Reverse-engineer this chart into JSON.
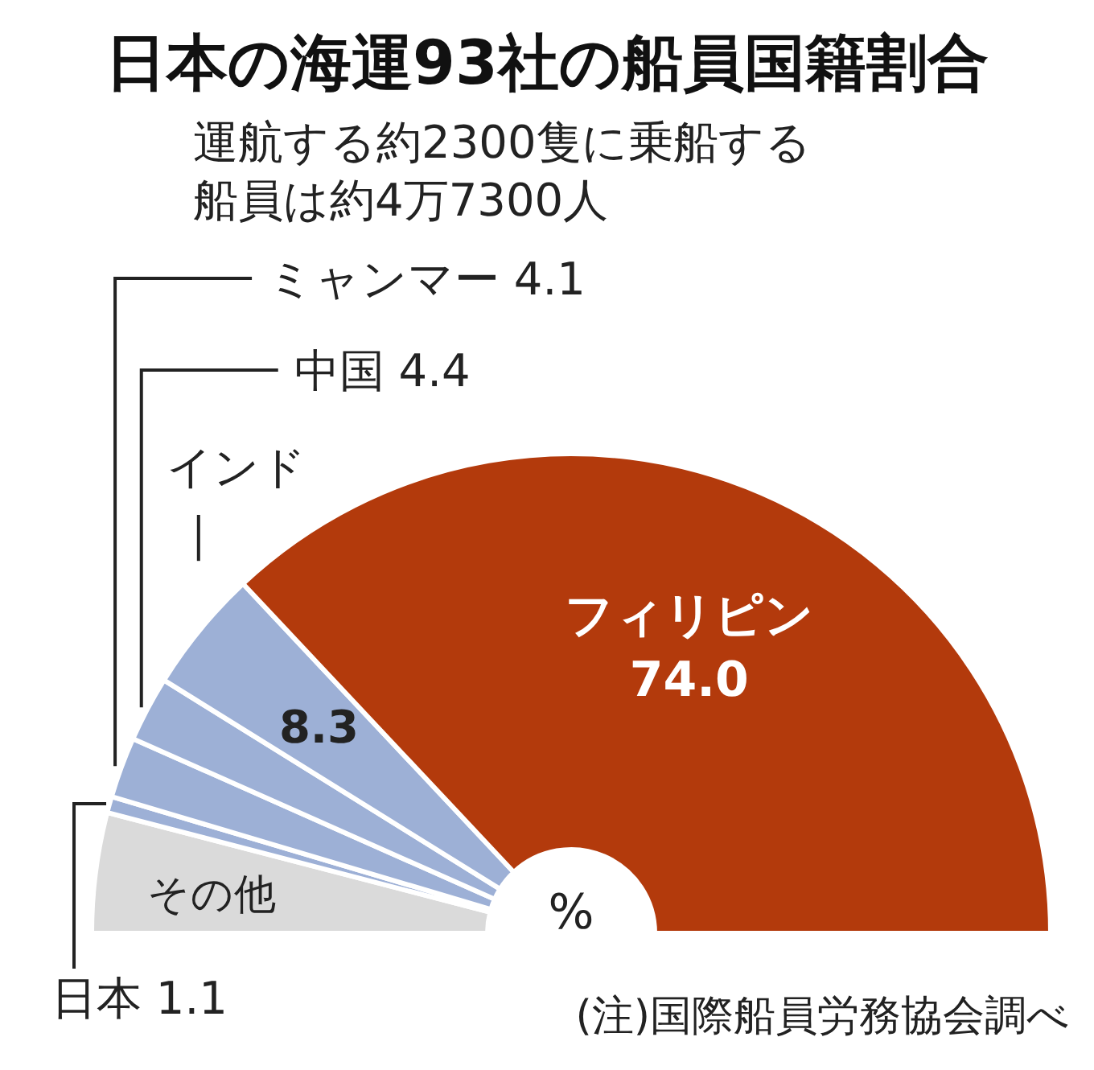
{
  "chart_data": {
    "type": "donut",
    "title": "日本の海運93社の船員国籍割合",
    "subtitle": "運航する約2300隻に乗船する船員は約4万7300人",
    "categories": [
      "その他",
      "日本",
      "ミャンマー",
      "中国",
      "インド",
      "フィリピン"
    ],
    "values": [
      8.1,
      1.1,
      4.1,
      4.4,
      8.3,
      74.0
    ],
    "colors": [
      "#dadada",
      "#9db0d6",
      "#9db0d6",
      "#9db0d6",
      "#9db0d6",
      "#b33a0c"
    ],
    "value_labels": [
      null,
      "1.1",
      "4.1",
      "4.4",
      "8.3",
      "74.0"
    ],
    "annotations": [
      "%",
      "(注)国際船員労務協会調べ"
    ]
  }
}
